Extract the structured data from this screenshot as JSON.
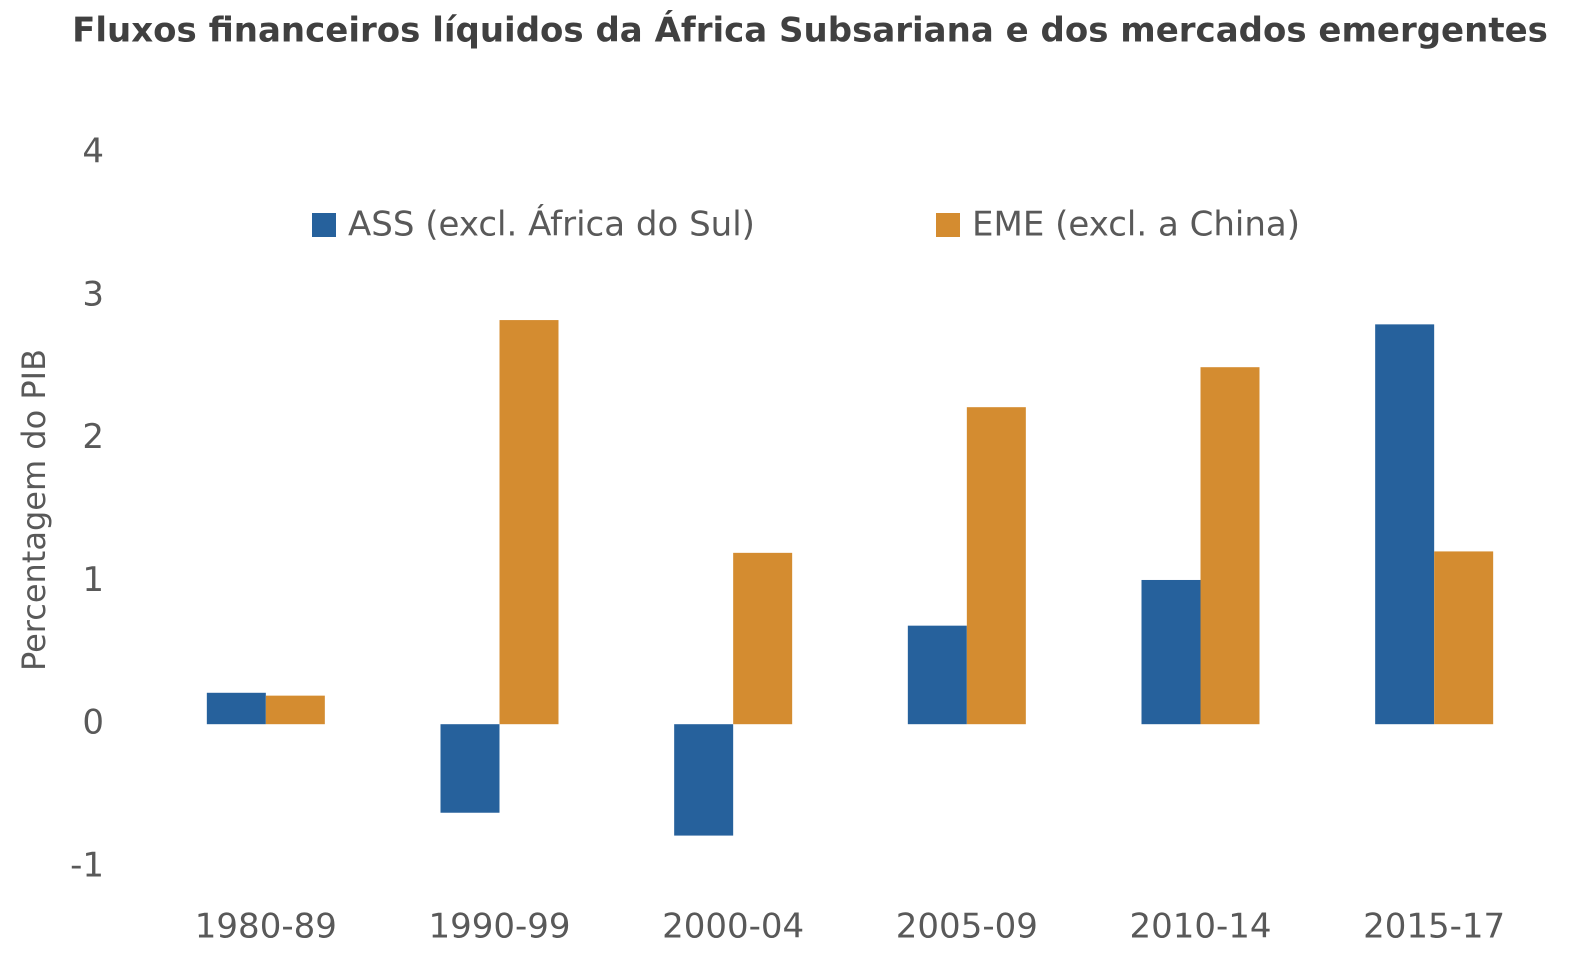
{
  "chart_data": {
    "type": "bar",
    "title": "Fluxos financeiros líquidos da África Subsariana e dos mercados emergentes",
    "y_label": "Percentagem do PIB",
    "categories": [
      "1980-89",
      "1990-99",
      "2000-04",
      "2005-09",
      "2010-14",
      "2015-17"
    ],
    "series": [
      {
        "name": "ASS (excl. África do Sul)",
        "color": "#26619c",
        "values": [
          0.22,
          -0.62,
          -0.78,
          0.69,
          1.01,
          2.8
        ]
      },
      {
        "name": "EME (excl. a China)",
        "color": "#d48c30",
        "values": [
          0.2,
          2.83,
          1.2,
          2.22,
          2.5,
          1.21
        ]
      }
    ],
    "ylim": [
      -1,
      4
    ],
    "yticks": [
      -1,
      0,
      1,
      2,
      3,
      4
    ],
    "grid": false,
    "legend": "top"
  }
}
